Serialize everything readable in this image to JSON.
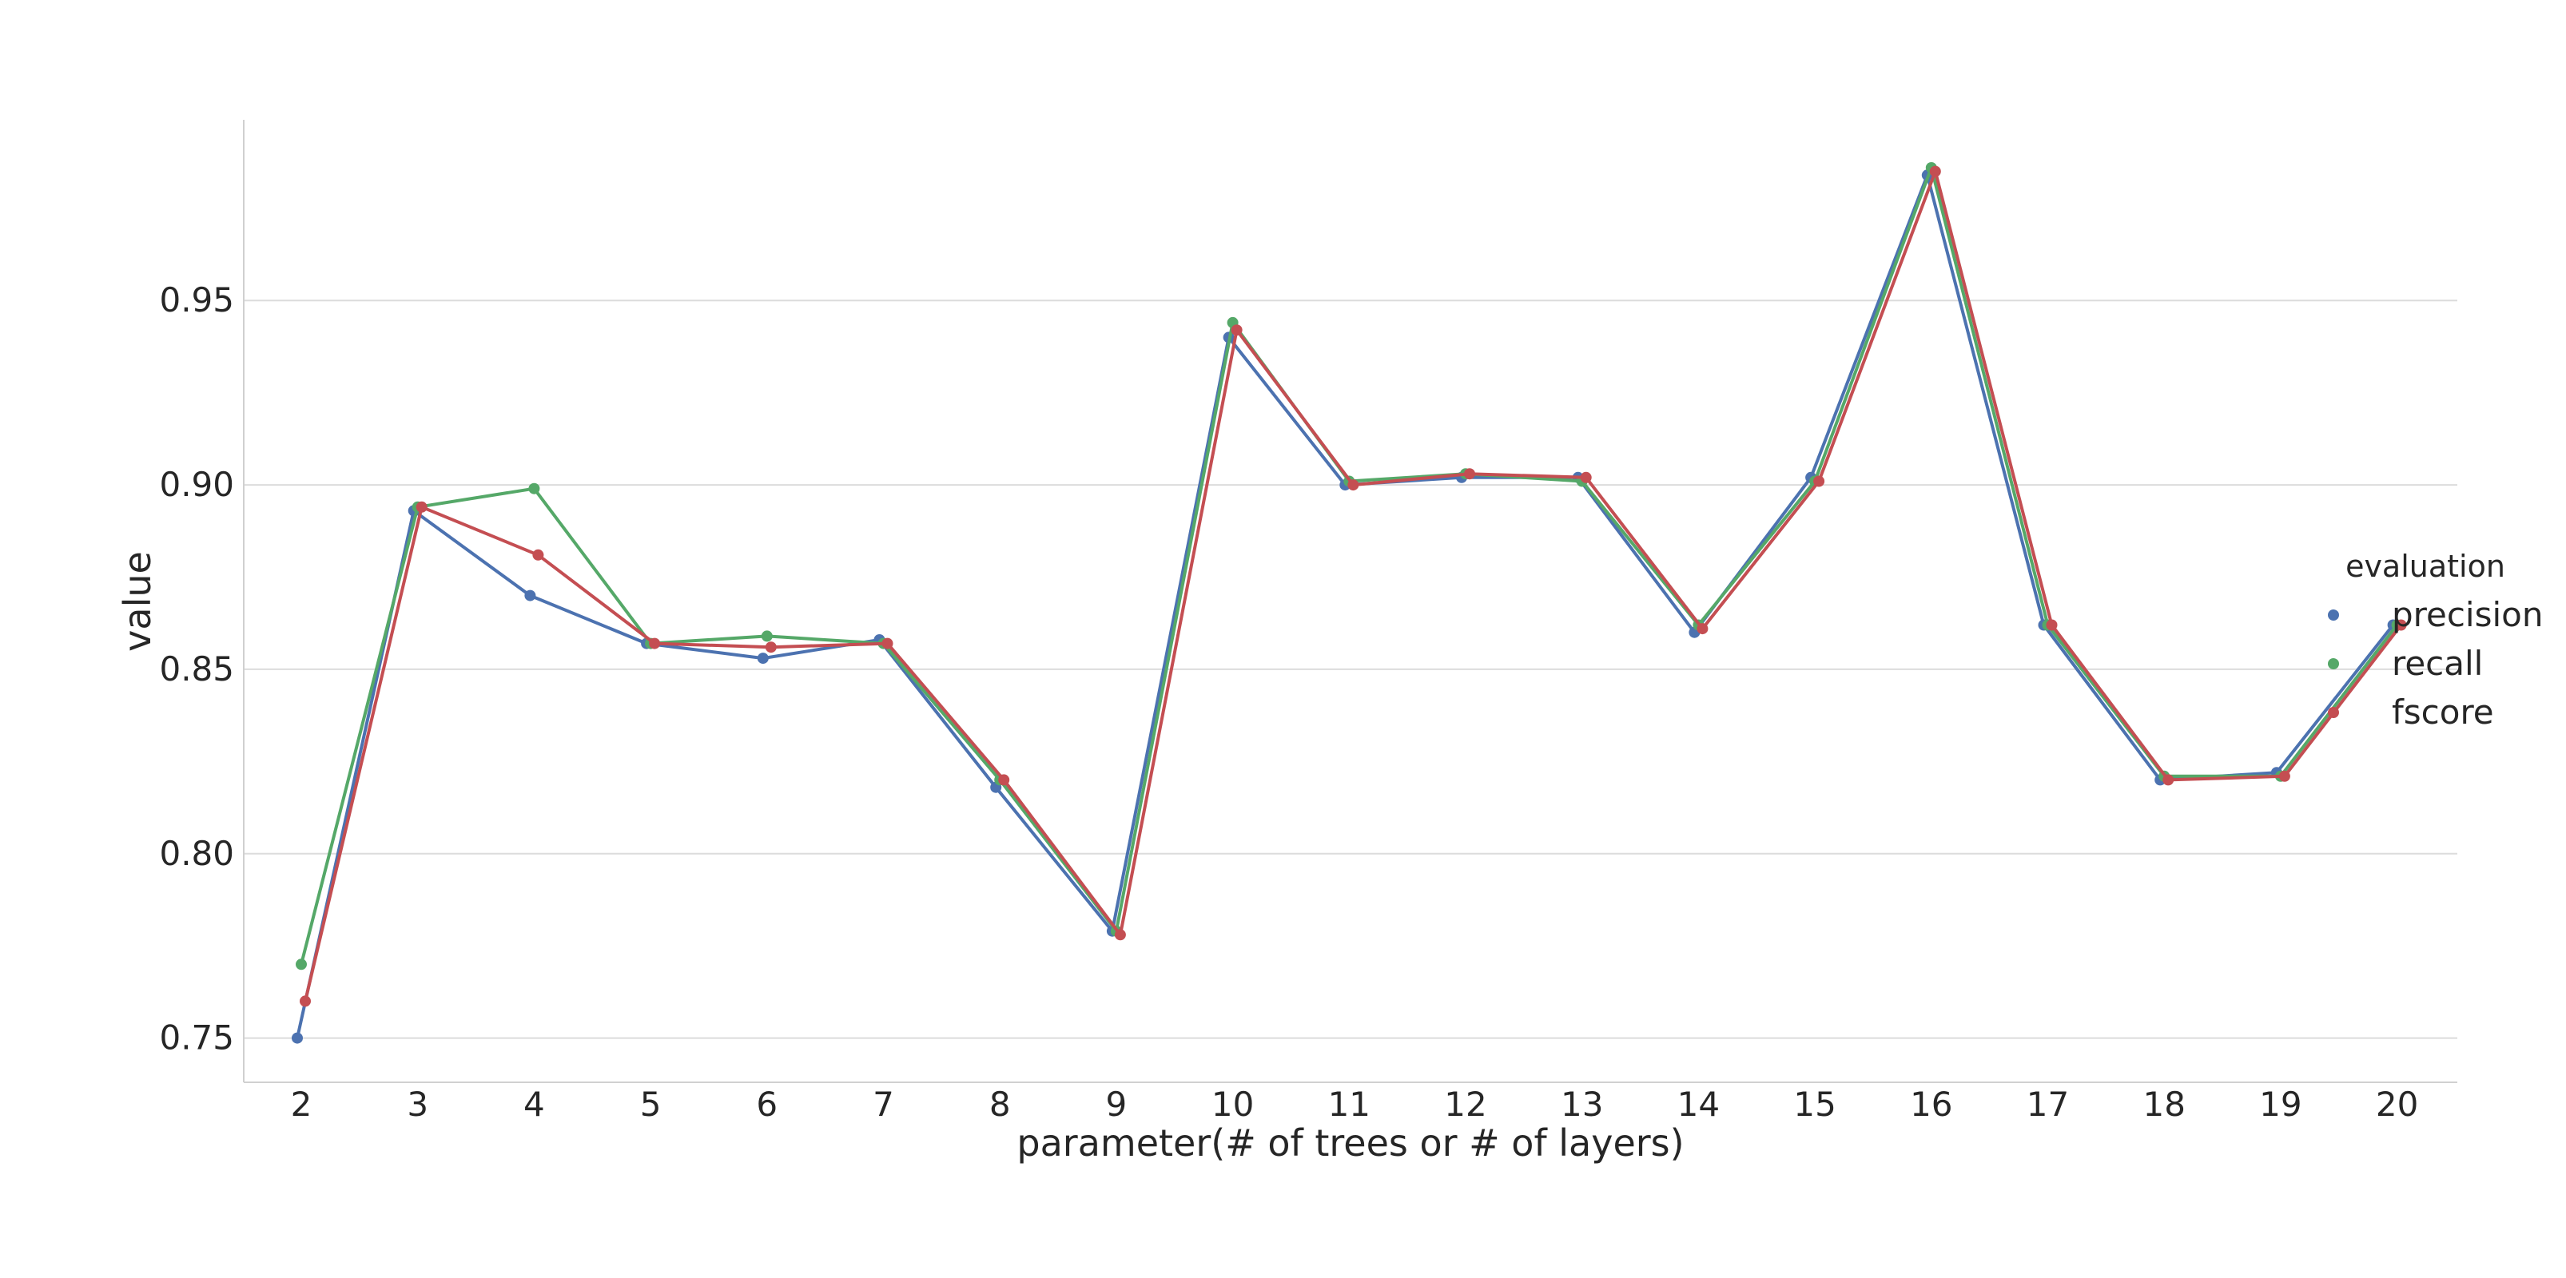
{
  "chart_data": {
    "type": "line",
    "title": "",
    "xlabel": "parameter(# of trees or # of layers)",
    "ylabel": "value",
    "categories": [
      "2",
      "3",
      "4",
      "5",
      "6",
      "7",
      "8",
      "9",
      "10",
      "11",
      "12",
      "13",
      "14",
      "15",
      "16",
      "17",
      "18",
      "19",
      "20"
    ],
    "ylim": [
      0.738,
      0.999
    ],
    "yticks": [
      "0.75",
      "0.80",
      "0.85",
      "0.90",
      "0.95"
    ],
    "grid": "horizontal",
    "legend": {
      "title": "evaluation",
      "placement": "right"
    },
    "series": [
      {
        "name": "precision",
        "color": "#4c72b0",
        "values": [
          0.75,
          0.893,
          0.87,
          0.857,
          0.853,
          0.858,
          0.818,
          0.779,
          0.94,
          0.9,
          0.902,
          0.902,
          0.86,
          0.902,
          0.984,
          0.862,
          0.82,
          0.822,
          0.862
        ]
      },
      {
        "name": "recall",
        "color": "#55a868",
        "values": [
          0.77,
          0.894,
          0.899,
          0.857,
          0.859,
          0.857,
          0.82,
          0.779,
          0.944,
          0.901,
          0.903,
          0.901,
          0.862,
          0.901,
          0.986,
          0.862,
          0.821,
          0.821,
          0.862
        ]
      },
      {
        "name": "fscore",
        "color": "#c44e52",
        "values": [
          0.76,
          0.894,
          0.881,
          0.857,
          0.856,
          0.857,
          0.82,
          0.778,
          0.942,
          0.9,
          0.903,
          0.902,
          0.861,
          0.901,
          0.985,
          0.862,
          0.82,
          0.821,
          0.862
        ]
      }
    ]
  }
}
